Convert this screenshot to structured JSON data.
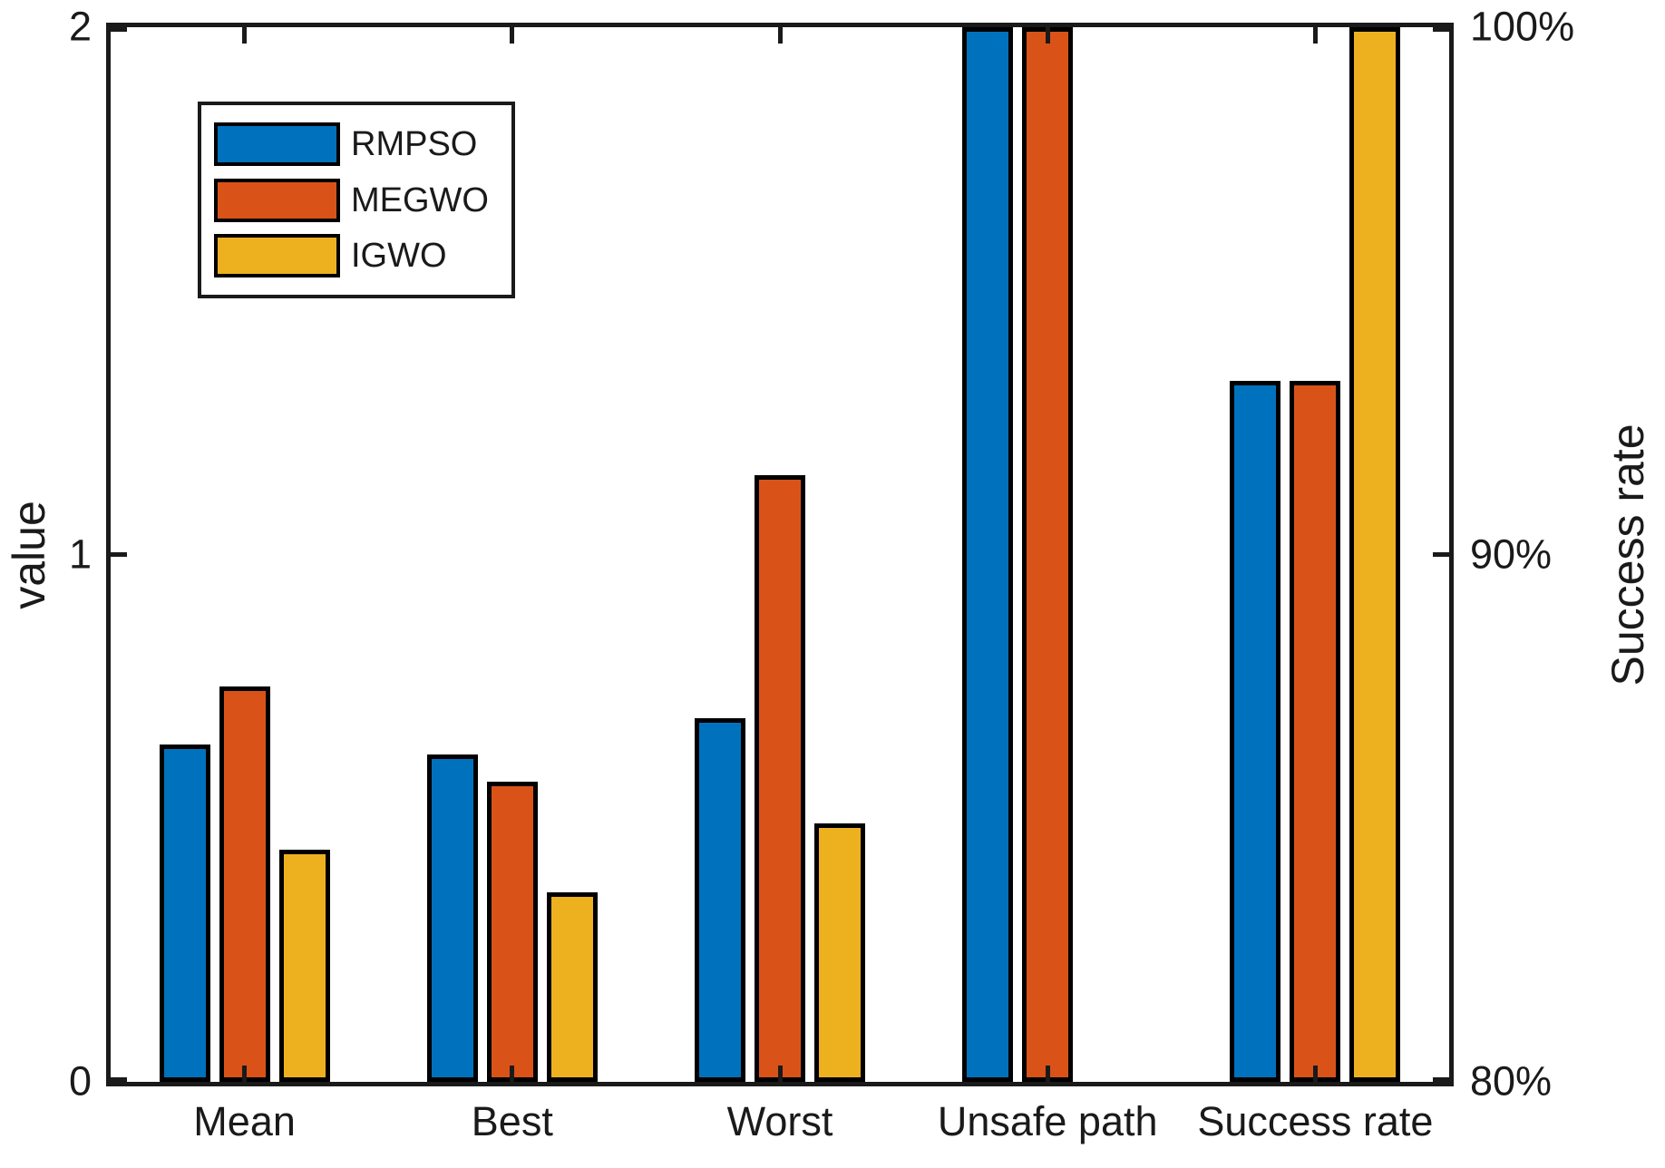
{
  "chart_data": {
    "type": "bar",
    "title": "",
    "categories": [
      "Mean",
      "Best",
      "Worst",
      "Unsafe path",
      "Success rate"
    ],
    "series": [
      {
        "name": "RMPSO",
        "color": "#0072BD",
        "values_left_axis": [
          0.64,
          0.62,
          0.69,
          2.0,
          1.33
        ]
      },
      {
        "name": "MEGWO",
        "color": "#D95319",
        "values_left_axis": [
          0.75,
          0.57,
          1.15,
          2.0,
          1.33
        ]
      },
      {
        "name": "IGWO",
        "color": "#EDB120",
        "values_left_axis": [
          0.44,
          0.36,
          0.49,
          0.0,
          2.0
        ]
      }
    ],
    "left_axis": {
      "label": "value",
      "ticks": [
        "0",
        "1",
        "2"
      ],
      "tick_values": [
        0,
        1,
        2
      ],
      "range": [
        0,
        2
      ]
    },
    "right_axis": {
      "label": "Success rate",
      "ticks": [
        "80%",
        "90%",
        "100%"
      ],
      "tick_values": [
        0,
        1,
        2
      ],
      "range_percent": [
        80,
        100
      ]
    },
    "success_rate_percent": {
      "RMPSO": 93.3,
      "MEGWO": 93.3,
      "IGWO": 100.0
    },
    "legend": {
      "position": "top-left",
      "entries": [
        "RMPSO",
        "MEGWO",
        "IGWO"
      ]
    },
    "bar_outline_color": "#000000",
    "axis_color": "#1a1a1a",
    "grid": false
  }
}
